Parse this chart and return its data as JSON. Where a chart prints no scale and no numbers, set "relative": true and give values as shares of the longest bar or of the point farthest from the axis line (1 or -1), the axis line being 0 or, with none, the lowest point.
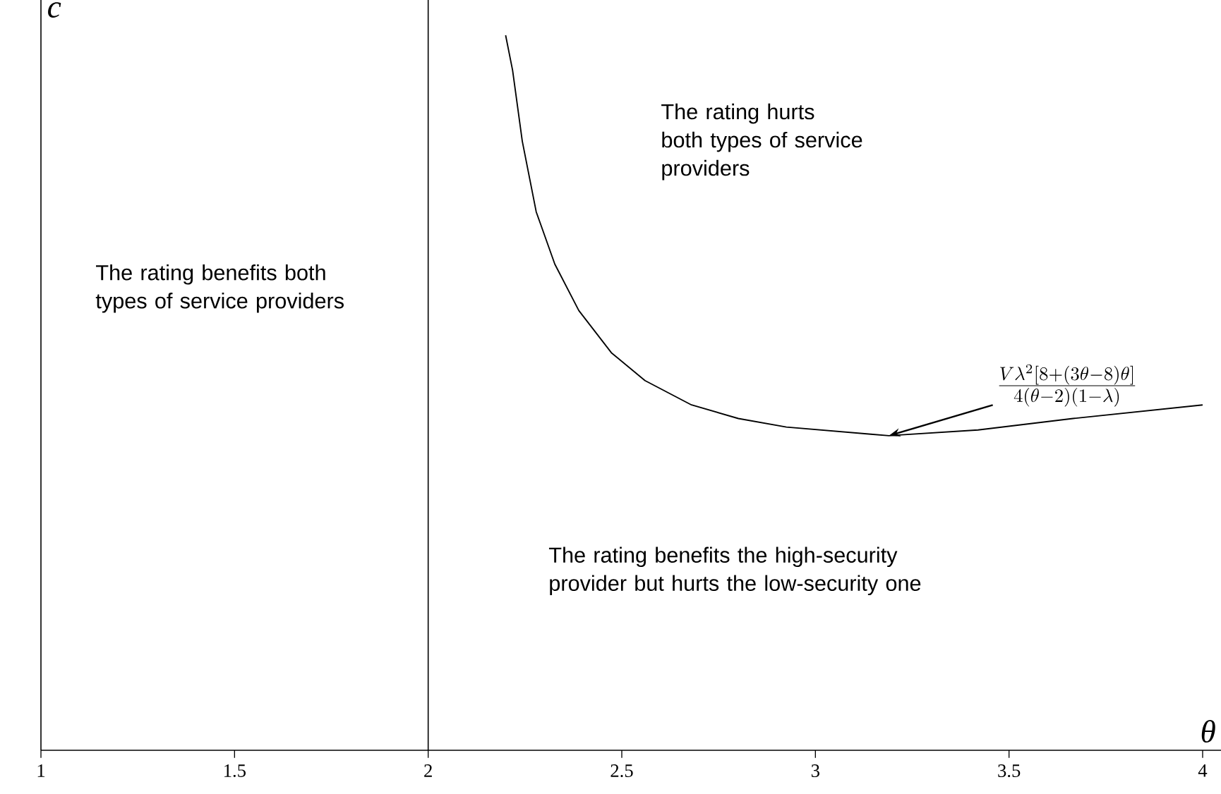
{
  "chart_data": {
    "type": "line",
    "relative": true,
    "xlabel": "θ",
    "ylabel": "c",
    "x": [
      2.2,
      2.218,
      2.243,
      2.279,
      2.327,
      2.389,
      2.473,
      2.56,
      2.68,
      2.801,
      2.925,
      3.143,
      3.19,
      3.42,
      3.665,
      4.0
    ],
    "series": [
      {
        "color": "#000000",
        "values": [
          1,
          0.951,
          0.852,
          0.753,
          0.68,
          0.615,
          0.556,
          0.517,
          0.483,
          0.464,
          0.452,
          0.442,
          0.44,
          0.448,
          0.464,
          0.483
        ]
      }
    ],
    "xlim": [
      1,
      4.05
    ],
    "xticks": [
      1,
      1.5,
      2,
      2.5,
      3,
      3.5,
      4
    ],
    "ref_lines": [
      {
        "axis": "x",
        "value": 2,
        "color": "#000000"
      }
    ],
    "annotations": [
      "The rating benefits both types of service providers",
      "The rating hurts both types of service providers",
      "The rating benefits the high-security provider but hurts the low-security one",
      {
        "text": "\\frac{V\\lambda^2\\left[8+(3\\theta-8)\\theta\\right]}{4(\\theta-2)(1-\\lambda)}",
        "x": 3.19,
        "y": 0.44
      }
    ],
    "grid": false,
    "marker": "none",
    "line_style": "solid"
  }
}
